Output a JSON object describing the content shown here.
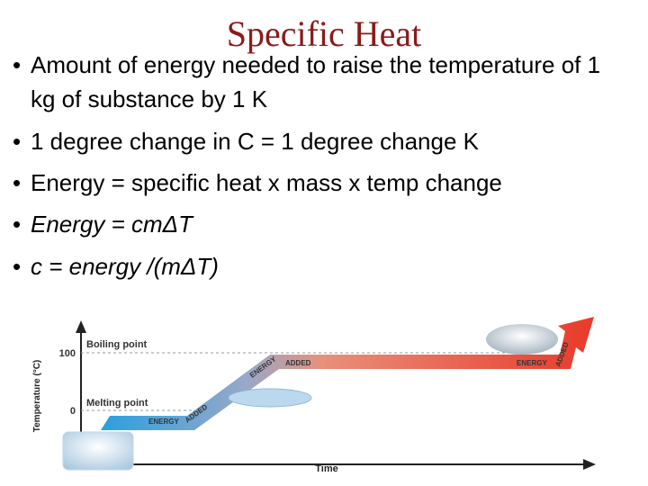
{
  "title": "Specific Heat",
  "bullets": [
    "Amount of energy needed to raise the temperature of 1 kg of substance by 1 K",
    "1 degree change in C = 1 degree change K",
    "Energy = specific heat x mass x temp change",
    "Energy = cmΔT",
    "c = energy /(mΔT)"
  ],
  "diagram": {
    "y_axis_label": "Temperature (°C)",
    "x_axis_label": "Time",
    "levels": [
      {
        "label": "Boiling point",
        "tick": "100"
      },
      {
        "label": "Melting point",
        "tick": "0"
      }
    ],
    "arrow_labels": [
      "ENERGY",
      "ADDED",
      "ENERGY",
      "ADDED",
      "ENERGY",
      "ADDED"
    ]
  }
}
